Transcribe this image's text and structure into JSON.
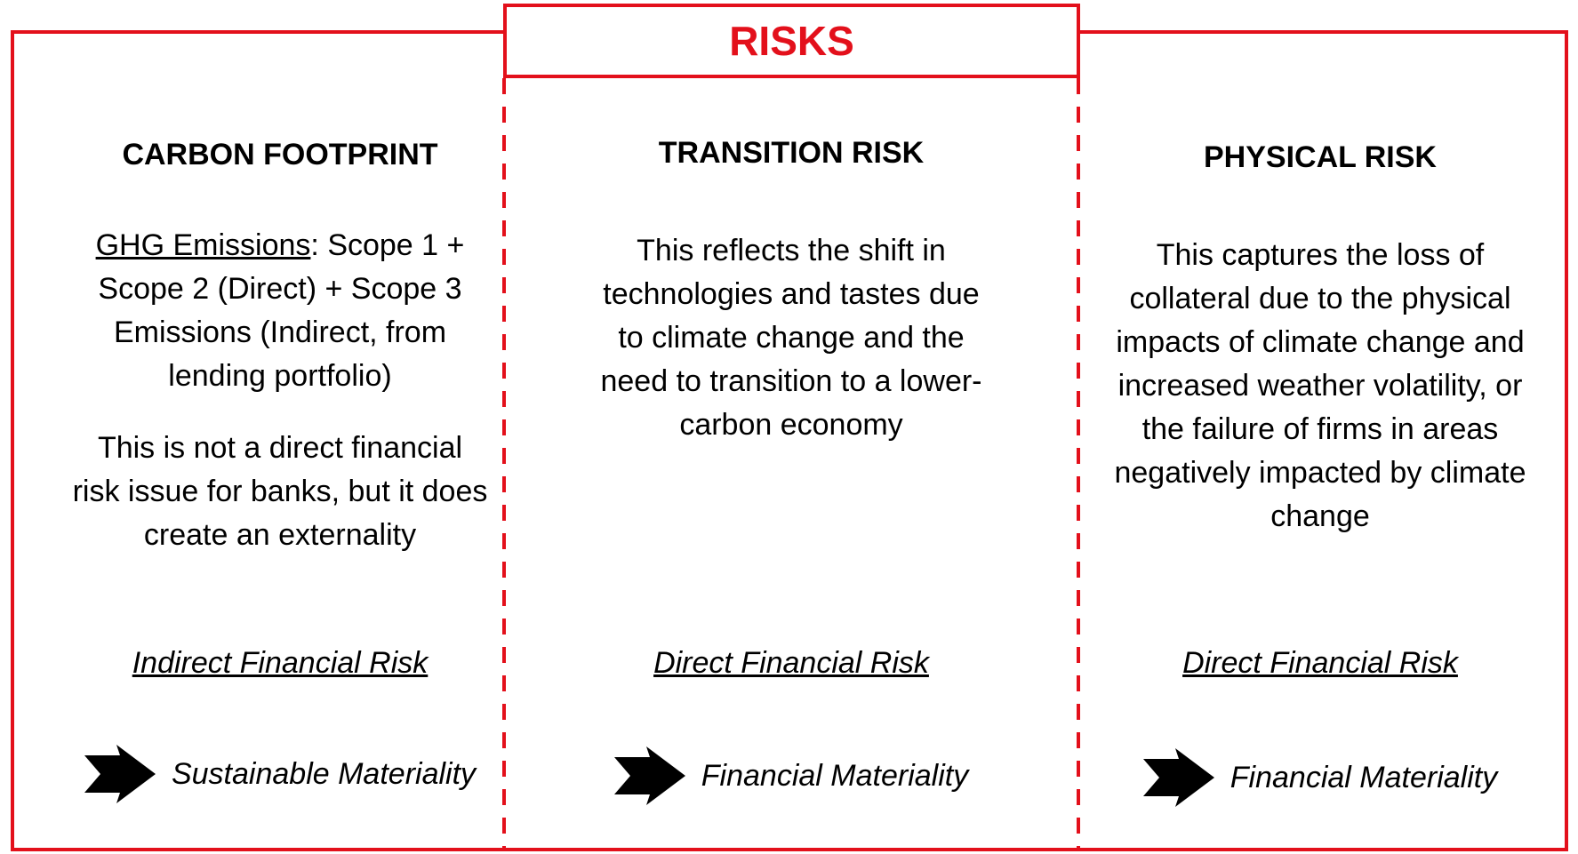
{
  "title": "RISKS",
  "columns": [
    {
      "heading": "CARBON FOOTPRINT",
      "definition": {
        "term": "GHG Emissions",
        "text": ": Scope 1 + Scope 2 (Direct) + Scope 3 Emissions (Indirect, from lending portfolio)"
      },
      "note": "This is not a direct financial risk issue for banks, but it does create an externality",
      "risk_type": "Indirect Financial Risk",
      "materiality": "Sustainable Materiality"
    },
    {
      "heading": "TRANSITION RISK",
      "description": "This reflects the shift in technologies and tastes due to climate change and the need to transition to a lower-carbon economy",
      "risk_type": "Direct Financial Risk",
      "materiality": "Financial Materiality"
    },
    {
      "heading": "PHYSICAL RISK",
      "description": "This captures the loss of collateral due to the physical impacts of climate change and increased weather volatility, or the failure of firms in areas negatively impacted by climate change",
      "risk_type": "Direct Financial Risk",
      "materiality": "Financial Materiality"
    }
  ]
}
